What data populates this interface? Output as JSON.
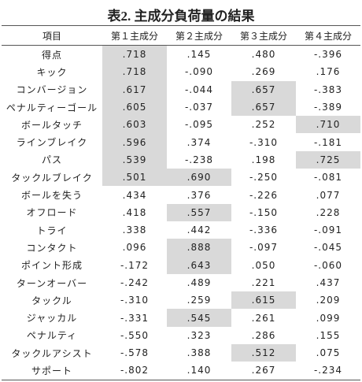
{
  "title": "表2. 主成分負荷量の結果",
  "table": {
    "header": [
      "項目",
      "第１主成分",
      "第２主成分",
      "第３主成分",
      "第４主成分"
    ],
    "rows": [
      {
        "label": "得点",
        "values": [
          ".718",
          ".145",
          ".480",
          "-.396"
        ],
        "highlight": [
          0
        ]
      },
      {
        "label": "キック",
        "values": [
          ".718",
          "-.090",
          ".269",
          ".176"
        ],
        "highlight": [
          0
        ]
      },
      {
        "label": "コンバージョン",
        "values": [
          ".617",
          "-.044",
          ".657",
          "-.383"
        ],
        "highlight": [
          0,
          2
        ]
      },
      {
        "label": "ペナルティーゴール",
        "values": [
          ".605",
          "-.037",
          ".657",
          "-.389"
        ],
        "highlight": [
          0,
          2
        ]
      },
      {
        "label": "ボールタッチ",
        "values": [
          ".603",
          "-.095",
          ".252",
          ".710"
        ],
        "highlight": [
          0,
          3
        ]
      },
      {
        "label": "ラインブレイク",
        "values": [
          ".596",
          ".374",
          "-.310",
          "-.181"
        ],
        "highlight": [
          0
        ]
      },
      {
        "label": "パス",
        "values": [
          ".539",
          "-.238",
          ".198",
          ".725"
        ],
        "highlight": [
          0,
          3
        ]
      },
      {
        "label": "タックルブレイク",
        "values": [
          ".501",
          ".690",
          "-.250",
          "-.081"
        ],
        "highlight": [
          0,
          1
        ]
      },
      {
        "label": "ボールを失う",
        "values": [
          ".434",
          ".376",
          "-.226",
          ".077"
        ],
        "highlight": []
      },
      {
        "label": "オフロード",
        "values": [
          ".418",
          ".557",
          "-.150",
          ".228"
        ],
        "highlight": [
          1
        ]
      },
      {
        "label": "トライ",
        "values": [
          ".338",
          ".442",
          "-.336",
          "-.091"
        ],
        "highlight": []
      },
      {
        "label": "コンタクト",
        "values": [
          ".096",
          ".888",
          "-.097",
          "-.045"
        ],
        "highlight": [
          1
        ]
      },
      {
        "label": "ポイント形成",
        "values": [
          "-.172",
          ".643",
          ".050",
          "-.060"
        ],
        "highlight": [
          1
        ]
      },
      {
        "label": "ターンオーバー",
        "values": [
          "-.242",
          ".489",
          ".221",
          ".437"
        ],
        "highlight": []
      },
      {
        "label": "タックル",
        "values": [
          "-.310",
          ".259",
          ".615",
          ".209"
        ],
        "highlight": [
          2
        ]
      },
      {
        "label": "ジャッカル",
        "values": [
          "-.331",
          ".545",
          ".261",
          ".099"
        ],
        "highlight": [
          1
        ]
      },
      {
        "label": "ペナルティ",
        "values": [
          "-.550",
          ".323",
          ".286",
          ".155"
        ],
        "highlight": []
      },
      {
        "label": "タックルアシスト",
        "values": [
          "-.578",
          ".388",
          ".512",
          ".075"
        ],
        "highlight": [
          2
        ]
      },
      {
        "label": "サポート",
        "values": [
          "-.802",
          ".140",
          ".267",
          "-.234"
        ],
        "highlight": []
      }
    ]
  }
}
